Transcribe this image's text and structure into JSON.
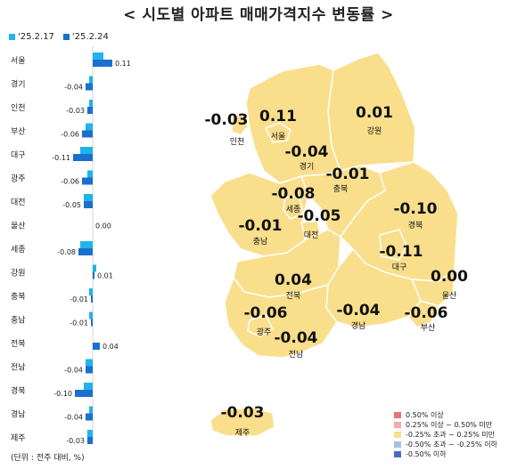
{
  "title": "< 시도별 아파트 매매가격지수 변동률 >",
  "legend": {
    "series": [
      {
        "name": "'25.2.17",
        "color": "#1FB4EA"
      },
      {
        "name": "'25.2.24",
        "color": "#1A6FCF"
      }
    ]
  },
  "unit_note": "(단위 : 전주 대비, %)",
  "chart_data": {
    "type": "bar",
    "orientation": "horizontal",
    "categories": [
      "서울",
      "경기",
      "인천",
      "부산",
      "대구",
      "광주",
      "대전",
      "울산",
      "세종",
      "강원",
      "충북",
      "충남",
      "전북",
      "전남",
      "경북",
      "경남",
      "제주"
    ],
    "series": [
      {
        "name": "'25.2.17",
        "values": [
          0.06,
          -0.02,
          -0.02,
          -0.04,
          -0.07,
          -0.03,
          -0.05,
          0.0,
          -0.07,
          0.02,
          -0.02,
          -0.02,
          0.0,
          -0.04,
          -0.05,
          -0.02,
          -0.03
        ]
      },
      {
        "name": "'25.2.24",
        "values": [
          0.11,
          -0.04,
          -0.03,
          -0.06,
          -0.11,
          -0.06,
          -0.05,
          0.0,
          -0.08,
          0.01,
          -0.01,
          -0.01,
          0.04,
          -0.04,
          -0.1,
          -0.04,
          -0.03
        ]
      }
    ],
    "data_labels": [
      "0.11",
      "-0.04",
      "-0.03",
      "-0.06",
      "-0.11",
      "-0.06",
      "-0.05",
      "0.00",
      "-0.08",
      "0.01",
      "-0.01",
      "-0.01",
      "0.04",
      "-0.04",
      "-0.10",
      "-0.04",
      "-0.03"
    ]
  },
  "map": {
    "colors": {
      "fill": "#F9DE8C",
      "stroke": "#FFFFFF"
    },
    "regions": [
      {
        "name": "인천",
        "value": "-0.03"
      },
      {
        "name": "서울",
        "value": "0.11"
      },
      {
        "name": "강원",
        "value": "0.01"
      },
      {
        "name": "경기",
        "value": "-0.04"
      },
      {
        "name": "충북",
        "value": "-0.01"
      },
      {
        "name": "세종",
        "value": "-0.08"
      },
      {
        "name": "대전",
        "value": "-0.05"
      },
      {
        "name": "충남",
        "value": "-0.01"
      },
      {
        "name": "경북",
        "value": "-0.10"
      },
      {
        "name": "대구",
        "value": "-0.11"
      },
      {
        "name": "울산",
        "value": "0.00"
      },
      {
        "name": "전북",
        "value": "0.04"
      },
      {
        "name": "광주",
        "value": "-0.06"
      },
      {
        "name": "경남",
        "value": "-0.04"
      },
      {
        "name": "부산",
        "value": "-0.06"
      },
      {
        "name": "전남",
        "value": "-0.04"
      },
      {
        "name": "제주",
        "value": "-0.03"
      }
    ]
  },
  "map_legend": [
    {
      "label": "0.50% 이상",
      "color": "#E8747C"
    },
    {
      "label": "0.25% 이상 ~ 0.50% 미만",
      "color": "#F4AAB0"
    },
    {
      "label": "-0.25% 초과 ~ 0.25% 미만",
      "color": "#F9DE8C"
    },
    {
      "label": "-0.50% 초과 ~ -0.25% 이하",
      "color": "#A9BFE6"
    },
    {
      "label": "-0.50% 이하",
      "color": "#3F6FC4"
    }
  ]
}
